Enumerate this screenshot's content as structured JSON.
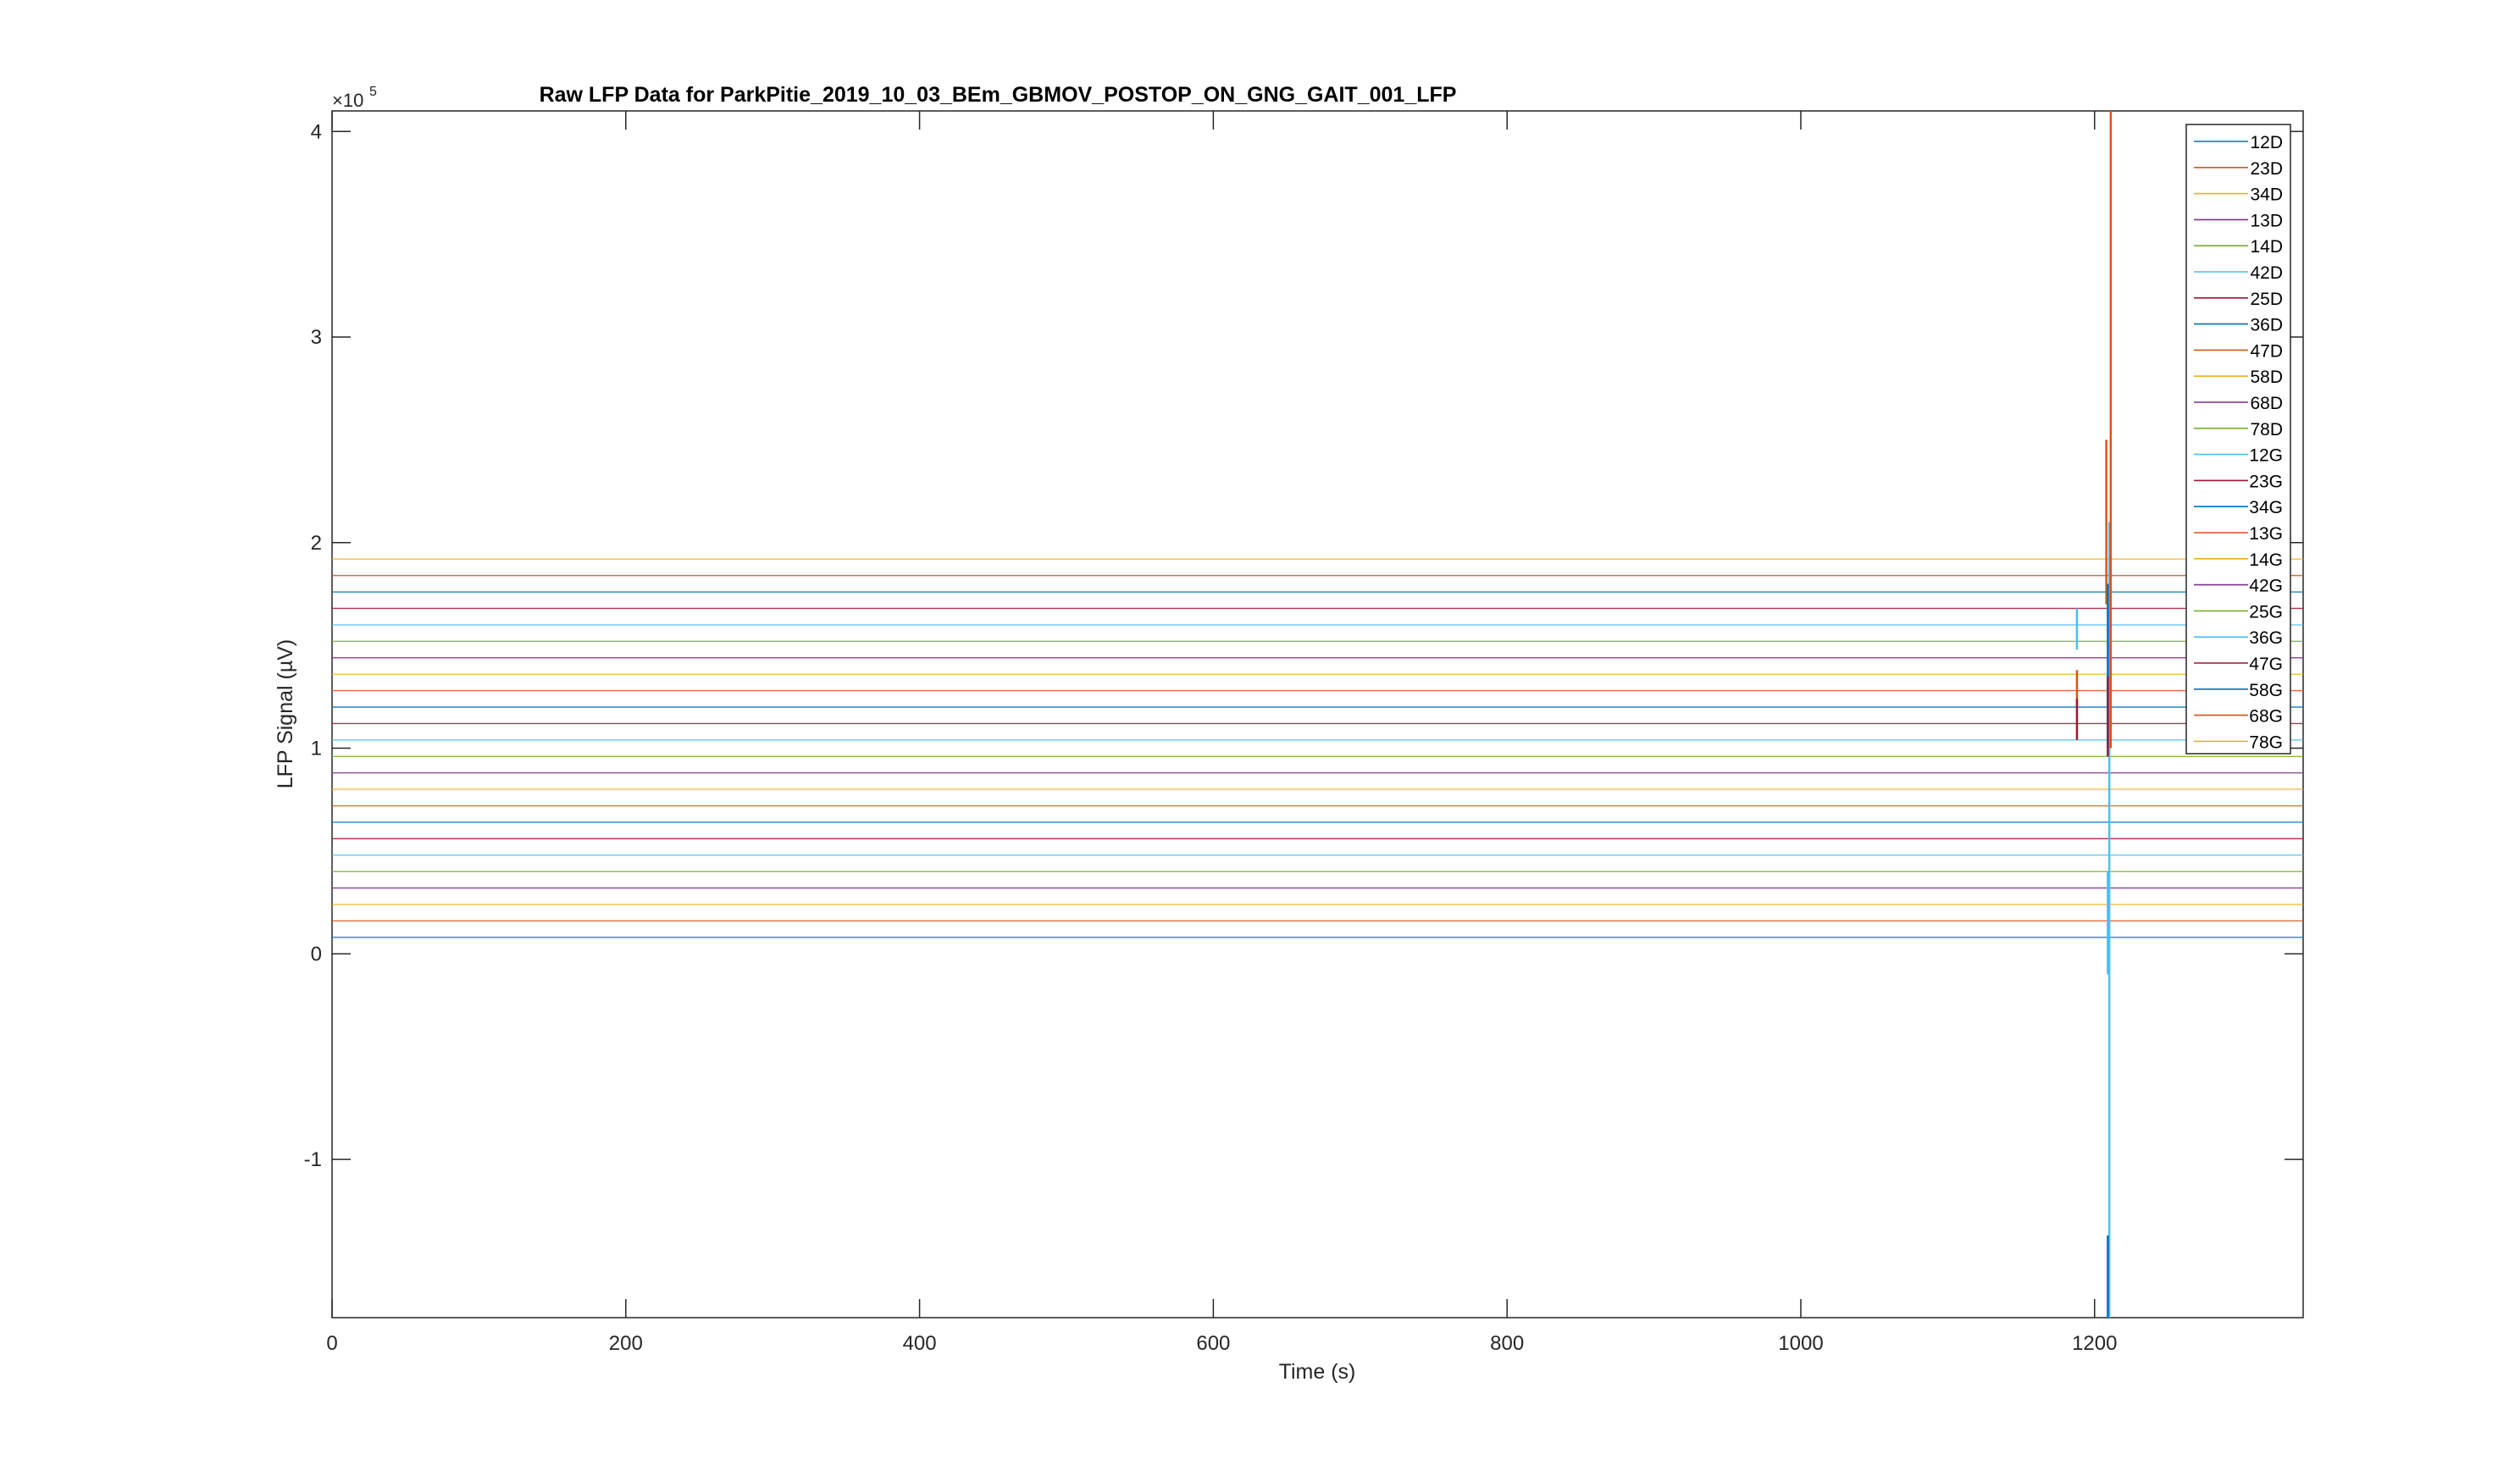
{
  "chart_data": {
    "type": "line",
    "title": "Raw LFP Data for ParkPitie_2019_10_03_BEm_GBMOV_POSTOP_ON_GNG_GAIT_001_LFP",
    "xlabel": "Time (s)",
    "ylabel": "LFP Signal (µV)",
    "y_exponent_label": "×10",
    "y_exponent_power": "5",
    "xlim": [
      0,
      1342
    ],
    "ylim": [
      -1.77,
      4.1
    ],
    "y_scale_factor": 100000,
    "x_ticks": [
      0,
      200,
      400,
      600,
      800,
      1000,
      1200
    ],
    "x_tick_labels": [
      "0",
      "200",
      "400",
      "600",
      "800",
      "1000",
      "1200"
    ],
    "y_ticks": [
      -1,
      0,
      1,
      2,
      3,
      4
    ],
    "y_tick_labels": [
      "-1",
      "0",
      "1",
      "2",
      "3",
      "4"
    ],
    "grid": false,
    "legend_position": "top-right",
    "series": [
      {
        "name": "12D",
        "color": "#0072BD",
        "offset": 0.08
      },
      {
        "name": "23D",
        "color": "#D95319",
        "offset": 0.16
      },
      {
        "name": "34D",
        "color": "#EDB120",
        "offset": 0.24
      },
      {
        "name": "13D",
        "color": "#7E2F8E",
        "offset": 0.32
      },
      {
        "name": "14D",
        "color": "#77AC30",
        "offset": 0.4
      },
      {
        "name": "42D",
        "color": "#4DBEEE",
        "offset": 0.48
      },
      {
        "name": "25D",
        "color": "#A2142F",
        "offset": 0.56
      },
      {
        "name": "36D",
        "color": "#0072BD",
        "offset": 0.64
      },
      {
        "name": "47D",
        "color": "#D95319",
        "offset": 0.72
      },
      {
        "name": "58D",
        "color": "#EDB120",
        "offset": 0.8
      },
      {
        "name": "68D",
        "color": "#7E2F8E",
        "offset": 0.88
      },
      {
        "name": "78D",
        "color": "#77AC30",
        "offset": 0.96
      },
      {
        "name": "12G",
        "color": "#4DBEEE",
        "offset": 1.04
      },
      {
        "name": "23G",
        "color": "#A2142F",
        "offset": 1.12
      },
      {
        "name": "34G",
        "color": "#0072BD",
        "offset": 1.2
      },
      {
        "name": "13G",
        "color": "#D95319",
        "offset": 1.28
      },
      {
        "name": "14G",
        "color": "#EDB120",
        "offset": 1.36
      },
      {
        "name": "42G",
        "color": "#7E2F8E",
        "offset": 1.44
      },
      {
        "name": "25G",
        "color": "#77AC30",
        "offset": 1.52
      },
      {
        "name": "36G",
        "color": "#4DBEEE",
        "offset": 1.6
      },
      {
        "name": "47G",
        "color": "#A2142F",
        "offset": 1.68
      },
      {
        "name": "58G",
        "color": "#0072BD",
        "offset": 1.76
      },
      {
        "name": "68G",
        "color": "#D95319",
        "offset": 1.84
      },
      {
        "name": "78G",
        "color": "#EDB120",
        "offset": 1.92
      }
    ],
    "artifacts": [
      {
        "series": "36G",
        "x": 1188,
        "y_low": 1.48,
        "y_high": 1.68
      },
      {
        "series": "47D",
        "x": 1188,
        "y_low": 1.2,
        "y_high": 1.38
      },
      {
        "series": "23G",
        "x": 1188,
        "y_low": 1.04,
        "y_high": 1.24
      },
      {
        "series": "12G",
        "x": 1210,
        "y_low": -1.77,
        "y_high": 2.1
      },
      {
        "series": "68G",
        "x": 1211,
        "y_low": 1.0,
        "y_high": 4.1
      },
      {
        "series": "13G",
        "x": 1208,
        "y_low": 1.7,
        "y_high": 2.5
      },
      {
        "series": "34G",
        "x": 1209,
        "y_low": 1.0,
        "y_high": 1.8
      },
      {
        "series": "25D",
        "x": 1209,
        "y_low": 0.96,
        "y_high": 1.35
      },
      {
        "series": "58G",
        "x": 1209,
        "y_low": -1.77,
        "y_high": -1.37
      },
      {
        "series": "42D",
        "x": 1209,
        "y_low": -0.1,
        "y_high": 0.4
      }
    ]
  }
}
